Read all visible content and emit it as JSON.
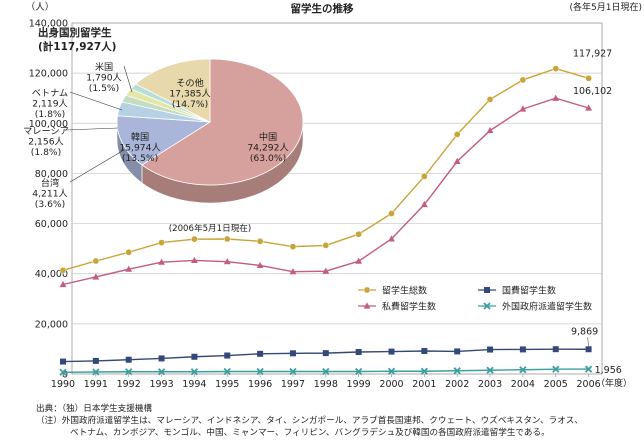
{
  "chart_data": [
    {
      "type": "line",
      "title": "留学生の推移",
      "ylabel": "（人）",
      "xlabel": "（年度）",
      "date_note": "(各年5月1日現在)",
      "ylim": [
        0,
        140000
      ],
      "yticks": [
        "0",
        "20,000",
        "40,000",
        "60,000",
        "80,000",
        "100,000",
        "120,000",
        "140,000"
      ],
      "grid": true,
      "legend_position": "bottom-right",
      "x": [
        "1990",
        "1991",
        "1992",
        "1993",
        "1994",
        "1995",
        "1996",
        "1997",
        "1998",
        "1999",
        "2000",
        "2001",
        "2002",
        "2003",
        "2004",
        "2005",
        "2006"
      ],
      "series": [
        {
          "name": "留学生総数",
          "color": "#c9a437",
          "marker": "circle",
          "values": [
            41347,
            45066,
            48561,
            52405,
            53787,
            53847,
            52921,
            50801,
            51298,
            55755,
            64011,
            78812,
            95550,
            109508,
            117302,
            121812,
            117927
          ]
        },
        {
          "name": "国費留学生数",
          "color": "#34487a",
          "marker": "square",
          "values": [
            4961,
            5219,
            5699,
            6207,
            6880,
            7371,
            8051,
            8250,
            8323,
            8774,
            8930,
            9173,
            9009,
            9746,
            9804,
            9891,
            9869
          ]
        },
        {
          "name": "私費留学生数",
          "color": "#c35b85",
          "marker": "triangle",
          "values": [
            35700,
            38700,
            41800,
            44600,
            45300,
            44800,
            43300,
            40800,
            41000,
            45000,
            53900,
            67600,
            84800,
            97100,
            105700,
            110000,
            106102
          ]
        },
        {
          "name": "外国政府派遣留学生数",
          "color": "#3d9e9e",
          "marker": "x",
          "values": [
            686,
            800,
            900,
            900,
            900,
            1000,
            1000,
            1000,
            1000,
            1000,
            1100,
            1100,
            1300,
            1500,
            1700,
            1900,
            1956
          ]
        }
      ],
      "annotations": [
        "117,927",
        "106,102",
        "9,869",
        "1,956"
      ]
    },
    {
      "type": "pie",
      "title": "出身国別留学生",
      "subtitle": "(計117,927人)",
      "date_note": "(2006年5月1日現在)",
      "slices": [
        {
          "label": "中国",
          "value": "74,292人",
          "percent_label": "(63.0%)",
          "percent": 63.0,
          "color": "#d6a09c"
        },
        {
          "label": "韓国",
          "value": "15,974人",
          "percent_label": "(13.5%)",
          "percent": 13.5,
          "color": "#a9b6d9"
        },
        {
          "label": "台湾",
          "value": "4,211人",
          "percent_label": "(3.6%)",
          "percent": 3.6,
          "color": "#b6d0e4"
        },
        {
          "label": "マレーシア",
          "value": "2,156人",
          "percent_label": "(1.8%)",
          "percent": 1.8,
          "color": "#c6dcc0"
        },
        {
          "label": "ベトナム",
          "value": "2,119人",
          "percent_label": "(1.8%)",
          "percent": 1.8,
          "color": "#e2e6a6"
        },
        {
          "label": "米国",
          "value": "1,790人",
          "percent_label": "(1.5%)",
          "percent": 1.5,
          "color": "#b9ddd8"
        },
        {
          "label": "その他",
          "value": "17,385人",
          "percent_label": "(14.7%)",
          "percent": 14.7,
          "color": "#e7d9ac"
        }
      ]
    }
  ],
  "notes": {
    "source": "出典：（独）日本学生支援機構",
    "note_1": "（注）外国政府派遣留学生は、マレーシア、インドネシア、タイ、シンガポール、アラブ首長国連邦、クウェート、ウズベキスタン、ラオス、",
    "note_2": "ベトナム、カンボジア、モンゴル、中国、ミャンマー、フィリピン、バングラデシュ及び韓国の各国政府派遣留学生である。"
  }
}
